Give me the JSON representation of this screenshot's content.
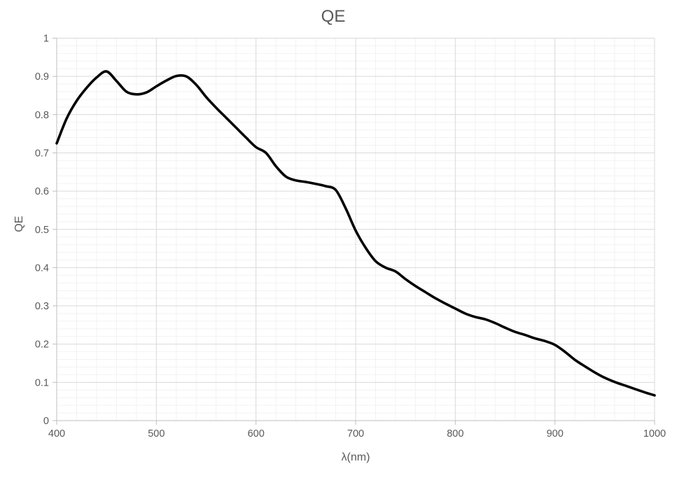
{
  "page": {
    "background": "#ffffff"
  },
  "colors": {
    "text": "#595959",
    "axis_line": "#bfbfbf",
    "tick_mark": "#bfbfbf",
    "grid_major": "#d9d9d9",
    "grid_minor": "#f2f2f2",
    "curve": "#000000"
  },
  "chart_data": {
    "type": "line",
    "title": "QE",
    "xlabel": "λ(nm)",
    "ylabel": "QE",
    "xlim": [
      400,
      1000
    ],
    "ylim": [
      0,
      1
    ],
    "x_major_step": 100,
    "x_minor_step": 20,
    "y_major_step": 0.1,
    "y_minor_step": 0.02,
    "grid": "major and minor gridlines on both axes",
    "legend": "none",
    "x_tick_labels": [
      "400",
      "500",
      "600",
      "700",
      "800",
      "900",
      "1000"
    ],
    "x_tick_values": [
      400,
      500,
      600,
      700,
      800,
      900,
      1000
    ],
    "y_tick_labels": [
      "0",
      "0.1",
      "0.2",
      "0.3",
      "0.4",
      "0.5",
      "0.6",
      "0.7",
      "0.8",
      "0.9",
      "1"
    ],
    "y_tick_values": [
      0,
      0.1,
      0.2,
      0.3,
      0.4,
      0.5,
      0.6,
      0.7,
      0.8,
      0.9,
      1
    ],
    "series": [
      {
        "name": "QE",
        "color": "#000000",
        "x": [
          400,
          410,
          420,
          430,
          440,
          450,
          460,
          470,
          480,
          490,
          500,
          510,
          520,
          530,
          540,
          550,
          560,
          570,
          580,
          590,
          600,
          610,
          620,
          630,
          640,
          650,
          660,
          670,
          680,
          690,
          700,
          710,
          720,
          730,
          740,
          750,
          760,
          770,
          780,
          790,
          800,
          810,
          820,
          830,
          840,
          850,
          860,
          870,
          880,
          890,
          900,
          910,
          920,
          930,
          940,
          950,
          960,
          970,
          980,
          990,
          1000
        ],
        "y": [
          0.725,
          0.79,
          0.836,
          0.87,
          0.897,
          0.913,
          0.888,
          0.86,
          0.853,
          0.858,
          0.874,
          0.889,
          0.901,
          0.9,
          0.878,
          0.846,
          0.818,
          0.792,
          0.766,
          0.74,
          0.715,
          0.7,
          0.665,
          0.638,
          0.628,
          0.624,
          0.619,
          0.613,
          0.603,
          0.555,
          0.497,
          0.452,
          0.417,
          0.4,
          0.39,
          0.37,
          0.352,
          0.336,
          0.32,
          0.306,
          0.293,
          0.28,
          0.271,
          0.265,
          0.255,
          0.243,
          0.232,
          0.224,
          0.215,
          0.208,
          0.198,
          0.18,
          0.159,
          0.142,
          0.126,
          0.112,
          0.101,
          0.092,
          0.083,
          0.074,
          0.066
        ]
      }
    ],
    "annotations": {
      "peak_1": {
        "x": 450,
        "y": 0.913
      },
      "local_min": {
        "x": 482,
        "y": 0.853
      },
      "peak_2": {
        "x": 523,
        "y": 0.903
      },
      "end_value": {
        "x": 1000,
        "y": 0.066
      }
    }
  }
}
